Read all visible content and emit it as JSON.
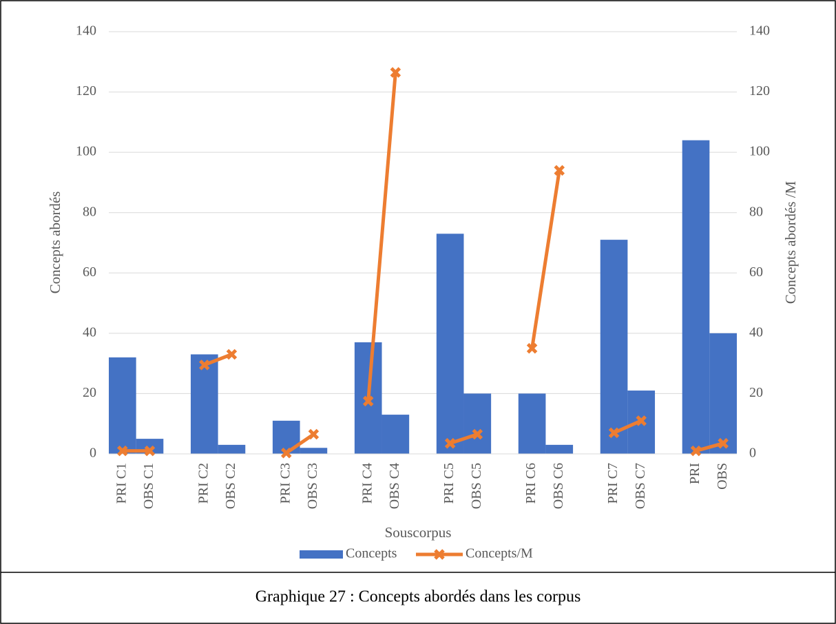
{
  "chart_data": {
    "type": "bar_line",
    "caption": "Graphique 27 : Concepts abordés dans les corpus",
    "x_label": "Souscorpus",
    "y_label": "Concepts abordés",
    "y2_label": "Concepts abordés /M",
    "categories": [
      "PRI C1",
      "OBS C1",
      "PRI C2",
      "OBS C2",
      "PRI C3",
      "OBS C3",
      "PRI C4",
      "OBS C4",
      "PRI C5",
      "OBS C5",
      "PRI C6",
      "OBS C6",
      "PRI C7",
      "OBS C7",
      "PRI",
      "OBS"
    ],
    "series": [
      {
        "name": "Concepts",
        "color": "#4472c4",
        "type": "bar",
        "values": [
          32,
          5,
          33,
          3,
          11,
          2,
          37,
          13,
          73,
          20,
          20,
          3,
          71,
          21,
          104,
          40
        ]
      },
      {
        "name": "Concepts/M",
        "color": "#ed7d31",
        "type": "line",
        "axis": "y2",
        "values": [
          1,
          1,
          29.5,
          33,
          0.3,
          6.5,
          17.5,
          126.5,
          3.5,
          6.5,
          35,
          94,
          7,
          11,
          1,
          3.5
        ]
      }
    ],
    "ylim": [
      0,
      140
    ],
    "yticks": [
      0,
      20,
      40,
      60,
      80,
      100,
      120,
      140
    ],
    "y2lim": [
      0,
      140
    ],
    "y2ticks": [
      0,
      20,
      40,
      60,
      80,
      100,
      120,
      140
    ],
    "grid": true,
    "legend": "bottom"
  }
}
